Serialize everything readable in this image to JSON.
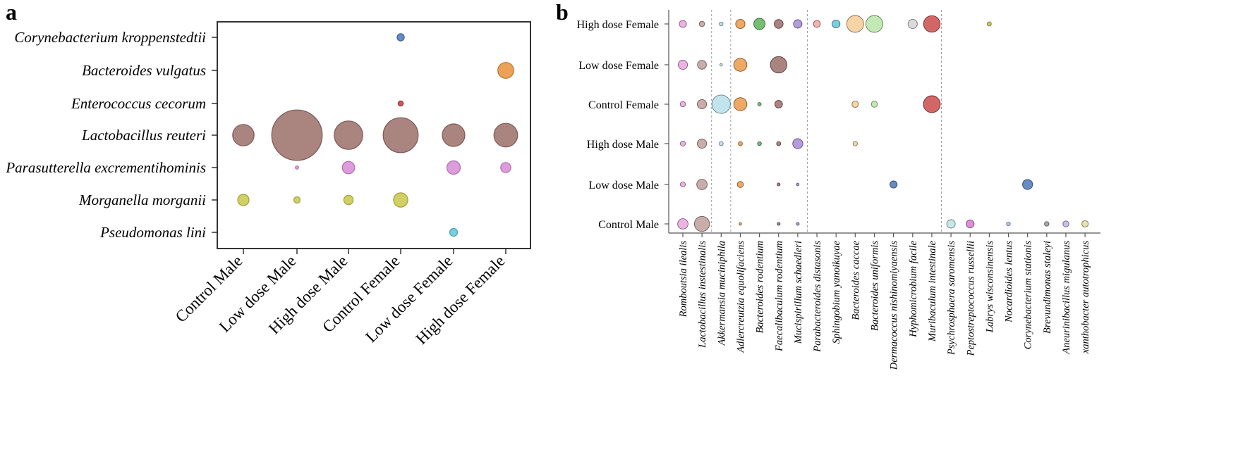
{
  "panels": {
    "a": "a",
    "b": "b"
  },
  "chart_data": [
    {
      "type": "scatter",
      "panel": "a",
      "title": "",
      "xlabel": "",
      "ylabel": "",
      "x_categories": [
        "Control Male",
        "Low dose Male",
        "High dose Male",
        "Control Female",
        "Low dose Female",
        "High dose Female"
      ],
      "y_categories": [
        "Corynebacterium kroppenstedtii",
        "Bacteroides vulgatus",
        "Enterococcus cecorum",
        "Lactobacillus reuteri",
        "Parasutterella excrementihominis",
        "Morganella morganii",
        "Pseudomonas lini"
      ],
      "grid": false,
      "legend": "none",
      "size_scale": "relative abundance (unitless)",
      "points": [
        {
          "y": "Corynebacterium kroppenstedtii",
          "x": "Control Female",
          "size": 0.1,
          "color": "#4a78b8"
        },
        {
          "y": "Bacteroides vulgatus",
          "x": "High dose Female",
          "size": 0.5,
          "color": "#e8903a"
        },
        {
          "y": "Enterococcus cecorum",
          "x": "Control Female",
          "size": 0.05,
          "color": "#c83b3b"
        },
        {
          "y": "Lactobacillus reuteri",
          "x": "Control Male",
          "size": 0.9,
          "color": "#9b6e69"
        },
        {
          "y": "Lactobacillus reuteri",
          "x": "Low dose Male",
          "size": 5.0,
          "color": "#9b6e69"
        },
        {
          "y": "Lactobacillus reuteri",
          "x": "High dose Male",
          "size": 1.6,
          "color": "#9b6e69"
        },
        {
          "y": "Lactobacillus reuteri",
          "x": "Control Female",
          "size": 2.4,
          "color": "#9b6e69"
        },
        {
          "y": "Lactobacillus reuteri",
          "x": "Low dose Female",
          "size": 1.0,
          "color": "#9b6e69"
        },
        {
          "y": "Lactobacillus reuteri",
          "x": "High dose Female",
          "size": 1.1,
          "color": "#9b6e69"
        },
        {
          "y": "Parasutterella excrementihominis",
          "x": "Low dose Male",
          "size": 0.02,
          "color": "#d98bd6"
        },
        {
          "y": "Parasutterella excrementihominis",
          "x": "High dose Male",
          "size": 0.3,
          "color": "#d98bd6"
        },
        {
          "y": "Parasutterella excrementihominis",
          "x": "Low dose Female",
          "size": 0.35,
          "color": "#d98bd6"
        },
        {
          "y": "Parasutterella excrementihominis",
          "x": "High dose Female",
          "size": 0.2,
          "color": "#d98bd6"
        },
        {
          "y": "Morganella morganii",
          "x": "Control Male",
          "size": 0.25,
          "color": "#c8c84a"
        },
        {
          "y": "Morganella morganii",
          "x": "Low dose Male",
          "size": 0.08,
          "color": "#c8c84a"
        },
        {
          "y": "Morganella morganii",
          "x": "High dose Male",
          "size": 0.17,
          "color": "#c8c84a"
        },
        {
          "y": "Morganella morganii",
          "x": "Control Female",
          "size": 0.4,
          "color": "#c8c84a"
        },
        {
          "y": "Pseudomonas lini",
          "x": "Low dose Female",
          "size": 0.12,
          "color": "#5ec8d8"
        }
      ]
    },
    {
      "type": "scatter",
      "panel": "b",
      "title": "",
      "xlabel": "",
      "ylabel": "",
      "x_categories": [
        "Romboutsia ilealis",
        "Lactobacillus instestinalis",
        "Akkermansia muciniphila",
        "Adlercreutzia equolifaciens",
        "Bacteroides rodentium",
        "Faecalibaculum rodentium",
        "Mucispirillum schaedleri",
        "Parabacteroides distasonis",
        "Sphingobium yanoikuyae",
        "Bacteroides caccae",
        "Bacteroides uniformis",
        "Dermacoccus nishinomiyaensis",
        "Hyphomicrobium facile",
        "Muribaculum intestinale",
        "Psychrosphaera saromensis",
        "Peptostreptococcus russellii",
        "Labrys wisconsinensis",
        "Nocardioides lentus",
        "Corynebacterium stationis",
        "Brevundimonas staleyi",
        "Aneurinibacillus migulanus",
        "xanthobacter autotrophicus"
      ],
      "y_categories": [
        "High dose Female",
        "Low dose Female",
        "Control Female",
        "High dose Male",
        "Low dose Male",
        "Control Male"
      ],
      "grid": false,
      "legend": "none",
      "group_separators_after": [
        "Lactobacillus instestinalis",
        "Akkermansia muciniphila",
        "Mucispirillum schaedleri",
        "Muribaculum intestinale"
      ],
      "size_scale": "relative abundance (unitless)",
      "series_colors": {
        "Romboutsia ilealis": "#e7a6dc",
        "Lactobacillus instestinalis": "#bf9f9c",
        "Akkermansia muciniphila": "#b6dfe9",
        "Adlercreutzia equolifaciens": "#eb9a4a",
        "Bacteroides rodentium": "#5fb35c",
        "Faecalibaculum rodentium": "#9b6e69",
        "Mucispirillum schaedleri": "#a58bd6",
        "Parabacteroides distasonis": "#f2a3a3",
        "Sphingobium yanoikuyae": "#62c7dc",
        "Bacteroides caccae": "#f4cc96",
        "Bacteroides uniformis": "#b8e6a8",
        "Dermacoccus nishinomiyaensis": "#4c77b9",
        "Hyphomicrobium facile": "#d5d5d5",
        "Muribaculum intestinale": "#cb4c4c",
        "Psychrosphaera saromensis": "#bfe3e7",
        "Peptostreptococcus russellii": "#d77cd0",
        "Labrys wisconsinensis": "#c7c744",
        "Nocardioides lentus": "#aec6e8",
        "Corynebacterium stationis": "#4c77b9",
        "Brevundimonas staleyi": "#999999",
        "Aneurinibacillus migulanus": "#c3b2e2",
        "xanthobacter autotrophicus": "#e0dc9c"
      },
      "points": [
        {
          "y": "High dose Female",
          "x": "Romboutsia ilealis",
          "size": 0.18
        },
        {
          "y": "High dose Female",
          "x": "Lactobacillus instestinalis",
          "size": 0.1
        },
        {
          "y": "High dose Female",
          "x": "Akkermansia muciniphila",
          "size": 0.05
        },
        {
          "y": "High dose Female",
          "x": "Adlercreutzia equolifaciens",
          "size": 0.3
        },
        {
          "y": "High dose Female",
          "x": "Bacteroides rodentium",
          "size": 0.45
        },
        {
          "y": "High dose Female",
          "x": "Faecalibaculum rodentium",
          "size": 0.28
        },
        {
          "y": "High dose Female",
          "x": "Mucispirillum schaedleri",
          "size": 0.25
        },
        {
          "y": "High dose Female",
          "x": "Parabacteroides distasonis",
          "size": 0.17
        },
        {
          "y": "High dose Female",
          "x": "Sphingobium yanoikuyae",
          "size": 0.22
        },
        {
          "y": "High dose Female",
          "x": "Bacteroides caccae",
          "size": 1.0
        },
        {
          "y": "High dose Female",
          "x": "Bacteroides uniformis",
          "size": 1.0
        },
        {
          "y": "High dose Female",
          "x": "Hyphomicrobium facile",
          "size": 0.3
        },
        {
          "y": "High dose Female",
          "x": "Muribaculum intestinale",
          "size": 0.95
        },
        {
          "y": "High dose Female",
          "x": "Labrys wisconsinensis",
          "size": 0.06
        },
        {
          "y": "Low dose Female",
          "x": "Romboutsia ilealis",
          "size": 0.3
        },
        {
          "y": "Low dose Female",
          "x": "Lactobacillus instestinalis",
          "size": 0.28
        },
        {
          "y": "Low dose Female",
          "x": "Akkermansia muciniphila",
          "size": 0.02
        },
        {
          "y": "Low dose Female",
          "x": "Adlercreutzia equolifaciens",
          "size": 0.6
        },
        {
          "y": "Low dose Female",
          "x": "Faecalibaculum rodentium",
          "size": 0.95
        },
        {
          "y": "Control Female",
          "x": "Romboutsia ilealis",
          "size": 0.1
        },
        {
          "y": "Control Female",
          "x": "Lactobacillus instestinalis",
          "size": 0.3
        },
        {
          "y": "Control Female",
          "x": "Akkermansia muciniphila",
          "size": 1.2
        },
        {
          "y": "Control Female",
          "x": "Adlercreutzia equolifaciens",
          "size": 0.6
        },
        {
          "y": "Control Female",
          "x": "Bacteroides rodentium",
          "size": 0.04
        },
        {
          "y": "Control Female",
          "x": "Faecalibaculum rodentium",
          "size": 0.2
        },
        {
          "y": "Control Female",
          "x": "Bacteroides caccae",
          "size": 0.15
        },
        {
          "y": "Control Female",
          "x": "Bacteroides uniformis",
          "size": 0.13
        },
        {
          "y": "Control Female",
          "x": "Muribaculum intestinale",
          "size": 1.0
        },
        {
          "y": "High dose Male",
          "x": "Romboutsia ilealis",
          "size": 0.09
        },
        {
          "y": "High dose Male",
          "x": "Lactobacillus instestinalis",
          "size": 0.3
        },
        {
          "y": "High dose Male",
          "x": "Akkermansia muciniphila",
          "size": 0.06
        },
        {
          "y": "High dose Male",
          "x": "Adlercreutzia equolifaciens",
          "size": 0.06
        },
        {
          "y": "High dose Male",
          "x": "Bacteroides rodentium",
          "size": 0.05
        },
        {
          "y": "High dose Male",
          "x": "Faecalibaculum rodentium",
          "size": 0.06
        },
        {
          "y": "High dose Male",
          "x": "Mucispirillum schaedleri",
          "size": 0.35
        },
        {
          "y": "High dose Male",
          "x": "Bacteroides caccae",
          "size": 0.07
        },
        {
          "y": "Low dose Male",
          "x": "Romboutsia ilealis",
          "size": 0.09
        },
        {
          "y": "Low dose Male",
          "x": "Lactobacillus instestinalis",
          "size": 0.38
        },
        {
          "y": "Low dose Male",
          "x": "Adlercreutzia equolifaciens",
          "size": 0.13
        },
        {
          "y": "Low dose Male",
          "x": "Faecalibaculum rodentium",
          "size": 0.03
        },
        {
          "y": "Low dose Male",
          "x": "Mucispirillum schaedleri",
          "size": 0.01
        },
        {
          "y": "Low dose Male",
          "x": "Dermacoccus nishinomiyaensis",
          "size": 0.18
        },
        {
          "y": "Low dose Male",
          "x": "Corynebacterium stationis",
          "size": 0.35
        },
        {
          "y": "Control Male",
          "x": "Romboutsia ilealis",
          "size": 0.38
        },
        {
          "y": "Control Male",
          "x": "Lactobacillus instestinalis",
          "size": 0.8
        },
        {
          "y": "Control Male",
          "x": "Adlercreutzia equolifaciens",
          "size": 0.02
        },
        {
          "y": "Control Male",
          "x": "Faecalibaculum rodentium",
          "size": 0.03
        },
        {
          "y": "Control Male",
          "x": "Mucispirillum schaedleri",
          "size": 0.03
        },
        {
          "y": "Control Male",
          "x": "Psychrosphaera saromensis",
          "size": 0.25
        },
        {
          "y": "Control Male",
          "x": "Peptostreptococcus russellii",
          "size": 0.22
        },
        {
          "y": "Control Male",
          "x": "Nocardioides lentus",
          "size": 0.05
        },
        {
          "y": "Control Male",
          "x": "Brevundimonas staleyi",
          "size": 0.07
        },
        {
          "y": "Control Male",
          "x": "Aneurinibacillus migulanus",
          "size": 0.12
        },
        {
          "y": "Control Male",
          "x": "xanthobacter autotrophicus",
          "size": 0.15
        }
      ]
    }
  ]
}
